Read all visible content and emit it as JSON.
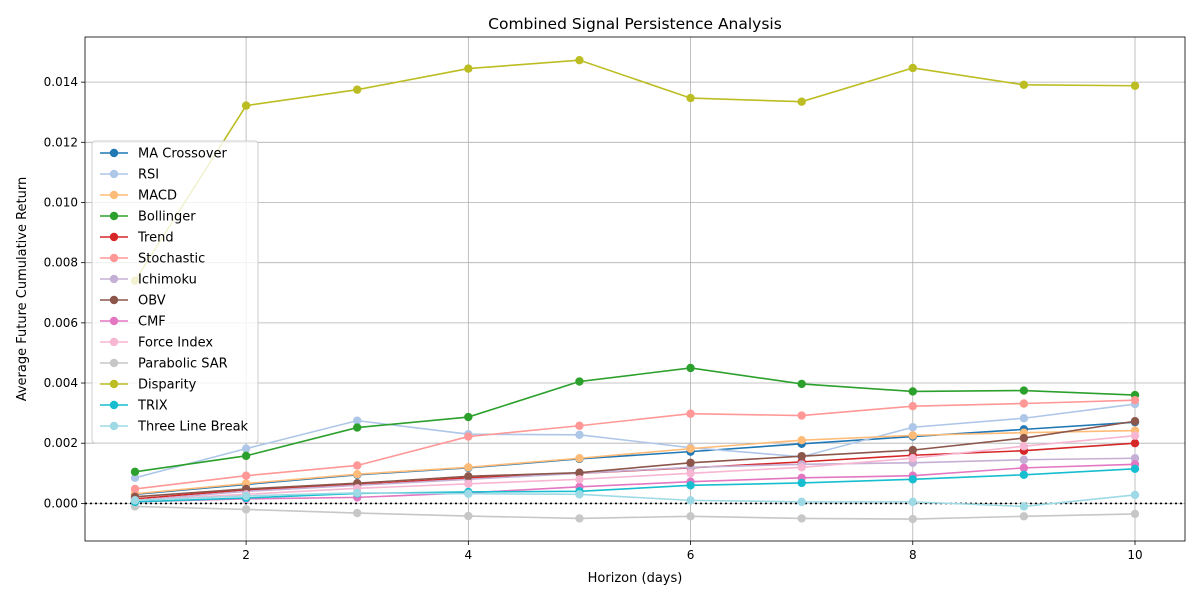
{
  "chart_data": {
    "type": "line",
    "title": "Combined Signal Persistence Analysis",
    "xlabel": "Horizon (days)",
    "ylabel": "Average Future Cumulative Return",
    "xlim": [
      0.55,
      10.45
    ],
    "ylim": [
      -0.00125,
      0.0155
    ],
    "xticks": [
      2,
      4,
      6,
      8,
      10
    ],
    "yticks": [
      0.0,
      0.002,
      0.004,
      0.006,
      0.008,
      0.01,
      0.012,
      0.014
    ],
    "ytick_labels": [
      "0.000",
      "0.002",
      "0.004",
      "0.006",
      "0.008",
      "0.010",
      "0.012",
      "0.014"
    ],
    "grid": true,
    "zero_line": true,
    "legend_position": "center-left",
    "x": [
      1,
      2,
      3,
      4,
      5,
      6,
      7,
      8,
      9,
      10
    ],
    "series": [
      {
        "name": "MA Crossover",
        "color": "#1f77b4",
        "values": [
          0.0003,
          0.00063,
          0.00095,
          0.00118,
          0.00148,
          0.00172,
          0.00198,
          0.00222,
          0.00246,
          0.0027
        ]
      },
      {
        "name": "RSI",
        "color": "#aec7e8",
        "values": [
          0.00085,
          0.00182,
          0.00275,
          0.0023,
          0.00228,
          0.00185,
          0.00155,
          0.00253,
          0.00283,
          0.0033
        ]
      },
      {
        "name": "MACD",
        "color": "#ffbb78",
        "values": [
          0.00032,
          0.00066,
          0.00097,
          0.0012,
          0.0015,
          0.00182,
          0.0021,
          0.00226,
          0.00235,
          0.00242
        ]
      },
      {
        "name": "Bollinger",
        "color": "#2ca02c",
        "values": [
          0.00105,
          0.00158,
          0.00252,
          0.00287,
          0.00405,
          0.0045,
          0.00397,
          0.00372,
          0.00375,
          0.0036
        ]
      },
      {
        "name": "Trend",
        "color": "#d62728",
        "values": [
          0.00015,
          0.00045,
          0.00062,
          0.00085,
          0.001,
          0.00118,
          0.00138,
          0.0016,
          0.00175,
          0.002
        ]
      },
      {
        "name": "Stochastic",
        "color": "#ff9896",
        "values": [
          0.00048,
          0.00092,
          0.00126,
          0.00222,
          0.00258,
          0.00298,
          0.00292,
          0.00323,
          0.00332,
          0.00343
        ]
      },
      {
        "name": "Ichimoku",
        "color": "#c5b0d5",
        "values": [
          0.0001,
          0.0004,
          0.0006,
          0.0008,
          0.001,
          0.0012,
          0.0013,
          0.00135,
          0.00145,
          0.0015
        ]
      },
      {
        "name": "OBV",
        "color": "#8c564b",
        "values": [
          0.00022,
          0.00048,
          0.00067,
          0.0009,
          0.00102,
          0.00135,
          0.00157,
          0.00177,
          0.00217,
          0.00273
        ]
      },
      {
        "name": "CMF",
        "color": "#e377c2",
        "values": [
          5e-05,
          0.00015,
          0.0002,
          0.00035,
          0.00055,
          0.00072,
          0.00085,
          0.00092,
          0.00118,
          0.0013
        ]
      },
      {
        "name": "Force Index",
        "color": "#f7b6d2",
        "values": [
          0.0001,
          0.0003,
          0.0005,
          0.00065,
          0.0008,
          0.001,
          0.0012,
          0.0015,
          0.0019,
          0.00225
        ]
      },
      {
        "name": "Parabolic SAR",
        "color": "#c7c7c7",
        "values": [
          -0.0001,
          -0.0002,
          -0.00032,
          -0.00042,
          -0.0005,
          -0.00043,
          -0.0005,
          -0.00052,
          -0.00043,
          -0.00035
        ]
      },
      {
        "name": "Disparity",
        "color": "#bcbd22",
        "values": [
          0.0074,
          0.01322,
          0.01375,
          0.01445,
          0.01473,
          0.01347,
          0.01335,
          0.01447,
          0.01391,
          0.01388
        ]
      },
      {
        "name": "TRIX",
        "color": "#17becf",
        "values": [
          5e-05,
          0.00018,
          0.00033,
          0.00038,
          0.0004,
          0.0006,
          0.00068,
          0.0008,
          0.00095,
          0.00115
        ]
      },
      {
        "name": "Three Line Break",
        "color": "#9edae5",
        "values": [
          0.0001,
          0.00025,
          0.00035,
          0.00032,
          0.0003,
          0.0001,
          5e-05,
          5e-05,
          -0.0001,
          0.00028
        ]
      }
    ]
  }
}
